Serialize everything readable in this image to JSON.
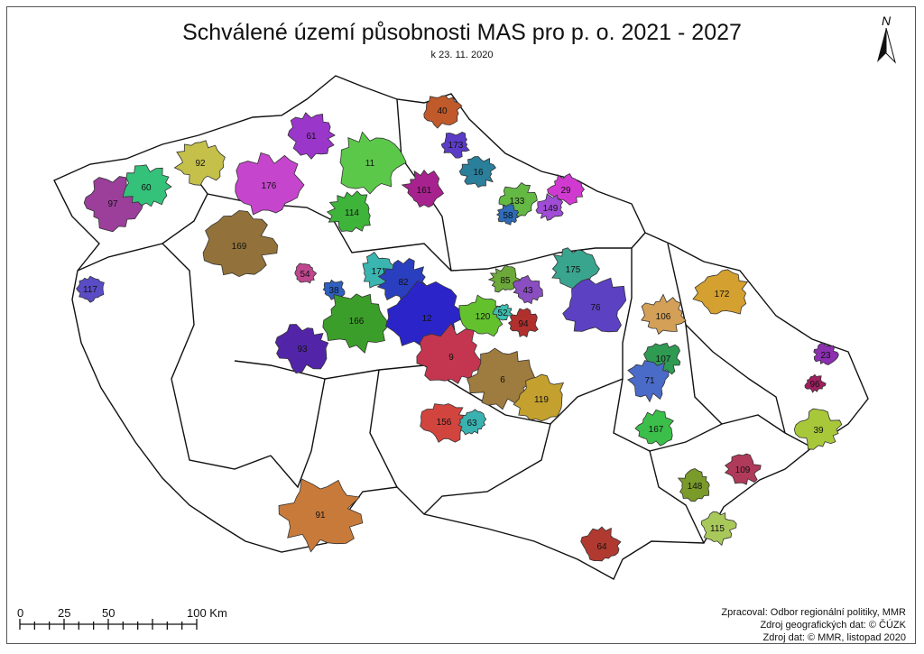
{
  "title": "Schválené území působnosti MAS pro p. o. 2021 - 2027",
  "subtitle": "k 23. 11. 2020",
  "north_label": "N",
  "scale_bar": {
    "labels": [
      "0",
      "25",
      "50",
      "100 Km"
    ]
  },
  "credits": [
    "Zpracoval: Odbor regionální politiky, MMR",
    "Zdroj geografických dat: © ČÚZK",
    "Zdroj dat: © MMR, listopad 2020"
  ],
  "regions": [
    {
      "label": "97",
      "color": "#9b3f9b"
    },
    {
      "label": "60",
      "color": "#34c27a"
    },
    {
      "label": "92",
      "color": "#c4c04a"
    },
    {
      "label": "176",
      "color": "#c546cc"
    },
    {
      "label": "61",
      "color": "#9a36c9"
    },
    {
      "label": "11",
      "color": "#5cc84a"
    },
    {
      "label": "114",
      "color": "#3fb43a"
    },
    {
      "label": "161",
      "color": "#a8228f"
    },
    {
      "label": "40",
      "color": "#c05a2a"
    },
    {
      "label": "173",
      "color": "#5b3cc6"
    },
    {
      "label": "16",
      "color": "#2a7f9a"
    },
    {
      "label": "133",
      "color": "#64b844"
    },
    {
      "label": "58",
      "color": "#2f6bb7"
    },
    {
      "label": "29",
      "color": "#d13ad0"
    },
    {
      "label": "149",
      "color": "#a04cd6"
    },
    {
      "label": "169",
      "color": "#92723a"
    },
    {
      "label": "54",
      "color": "#c0478f"
    },
    {
      "label": "117",
      "color": "#5a4cc4"
    },
    {
      "label": "171",
      "color": "#3bb5b0"
    },
    {
      "label": "82",
      "color": "#2a3fbf"
    },
    {
      "label": "38",
      "color": "#2f5fbf"
    },
    {
      "label": "166",
      "color": "#3c9e2a"
    },
    {
      "label": "12",
      "color": "#2b25c9"
    },
    {
      "label": "93",
      "color": "#5225a8"
    },
    {
      "label": "120",
      "color": "#63c12e"
    },
    {
      "label": "85",
      "color": "#6da83a"
    },
    {
      "label": "43",
      "color": "#8a4ec0"
    },
    {
      "label": "52",
      "color": "#3dbfb0"
    },
    {
      "label": "94",
      "color": "#b0302e"
    },
    {
      "label": "9",
      "color": "#c4364f"
    },
    {
      "label": "6",
      "color": "#9e7b3e"
    },
    {
      "label": "119",
      "color": "#c4a02e"
    },
    {
      "label": "175",
      "color": "#3aa58e"
    },
    {
      "label": "76",
      "color": "#5c41c2"
    },
    {
      "label": "106",
      "color": "#d4a058"
    },
    {
      "label": "172",
      "color": "#d4a030"
    },
    {
      "label": "107",
      "color": "#2e9a52"
    },
    {
      "label": "71",
      "color": "#4a6bc8"
    },
    {
      "label": "23",
      "color": "#8c2fb0"
    },
    {
      "label": "96",
      "color": "#a02060"
    },
    {
      "label": "39",
      "color": "#a8c83a"
    },
    {
      "label": "167",
      "color": "#3cbf4a"
    },
    {
      "label": "156",
      "color": "#d2453e"
    },
    {
      "label": "63",
      "color": "#3ab2b0"
    },
    {
      "label": "109",
      "color": "#b03a5a"
    },
    {
      "label": "148",
      "color": "#7a9a2a"
    },
    {
      "label": "115",
      "color": "#a8c85a"
    },
    {
      "label": "91",
      "color": "#c87a3a"
    },
    {
      "label": "64",
      "color": "#b03a30"
    }
  ]
}
